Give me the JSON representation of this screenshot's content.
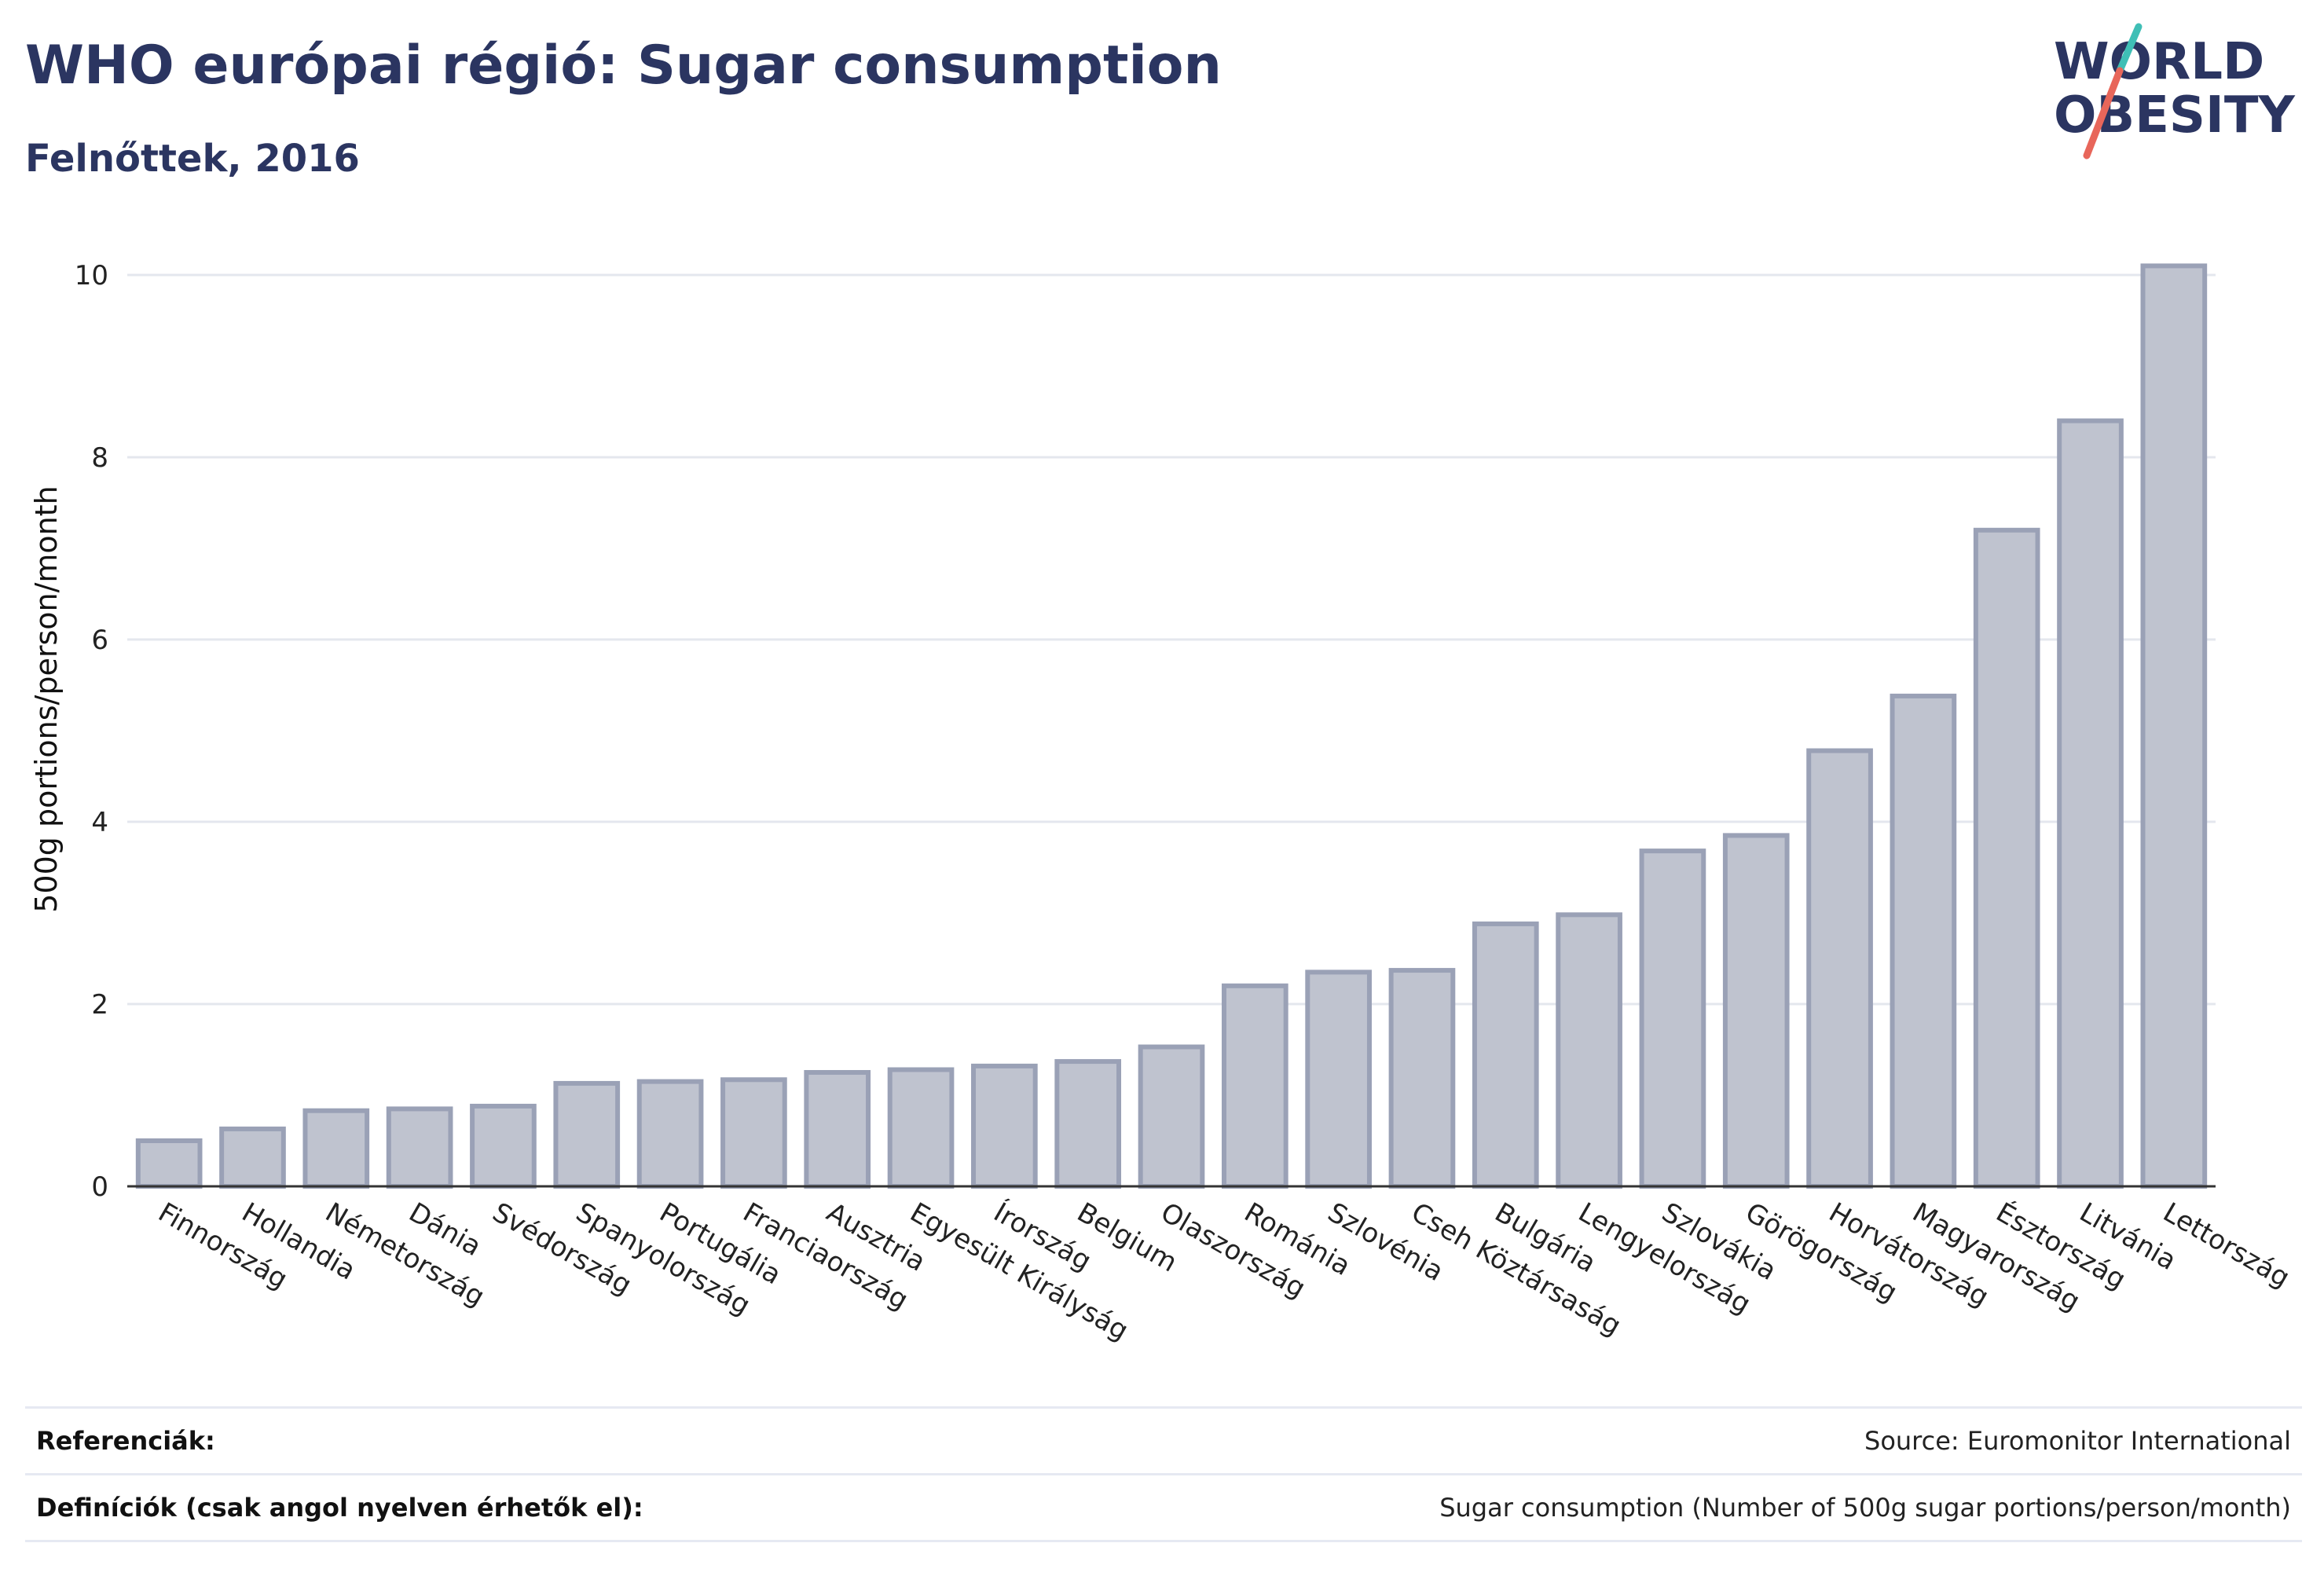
{
  "header": {
    "title": "WHO európai régió: Sugar consumption",
    "subtitle": "Felnőttek, 2016"
  },
  "logo": {
    "line1": "WORLD",
    "line2": "OBESITY",
    "text_color": "#2b3561",
    "slash_color_top": "#3fbfb6",
    "slash_color_bottom": "#e8665a"
  },
  "colors": {
    "bar_fill": "#bfc3cf",
    "bar_stroke": "#9aa1b6",
    "grid": "#e4e7ee",
    "axis": "#333333",
    "tick_text": "#222222"
  },
  "chart_data": {
    "type": "bar",
    "title": "WHO európai régió: Sugar consumption",
    "subtitle": "Felnőttek, 2016",
    "xlabel": "",
    "ylabel": "500g portions/person/month",
    "ylim": [
      0,
      10.3
    ],
    "yticks": [
      0,
      2,
      4,
      6,
      8,
      10
    ],
    "grid": true,
    "categories": [
      "Finnország",
      "Hollandia",
      "Németország",
      "Dánia",
      "Svédország",
      "Spanyolország",
      "Portugália",
      "Franciaország",
      "Ausztria",
      "Egyesült Királyság",
      "Írország",
      "Belgium",
      "Olaszország",
      "Románia",
      "Szlovénia",
      "Cseh Köztársaság",
      "Bulgária",
      "Lengyelország",
      "Szlovákia",
      "Görögország",
      "Horvátország",
      "Magyarország",
      "Észtország",
      "Litvánia",
      "Lettország"
    ],
    "values": [
      0.5,
      0.63,
      0.83,
      0.85,
      0.88,
      1.13,
      1.15,
      1.17,
      1.25,
      1.28,
      1.32,
      1.37,
      1.53,
      2.2,
      2.35,
      2.37,
      2.88,
      2.98,
      3.68,
      3.85,
      4.78,
      5.38,
      7.2,
      8.4,
      10.1
    ]
  },
  "footer": {
    "references_label": "Referenciák:",
    "references_value": "Source: Euromonitor International",
    "definitions_label": "Definíciók (csak angol nyelven érhetők el):",
    "definitions_value": "Sugar consumption (Number of 500g sugar portions/person/month)"
  }
}
